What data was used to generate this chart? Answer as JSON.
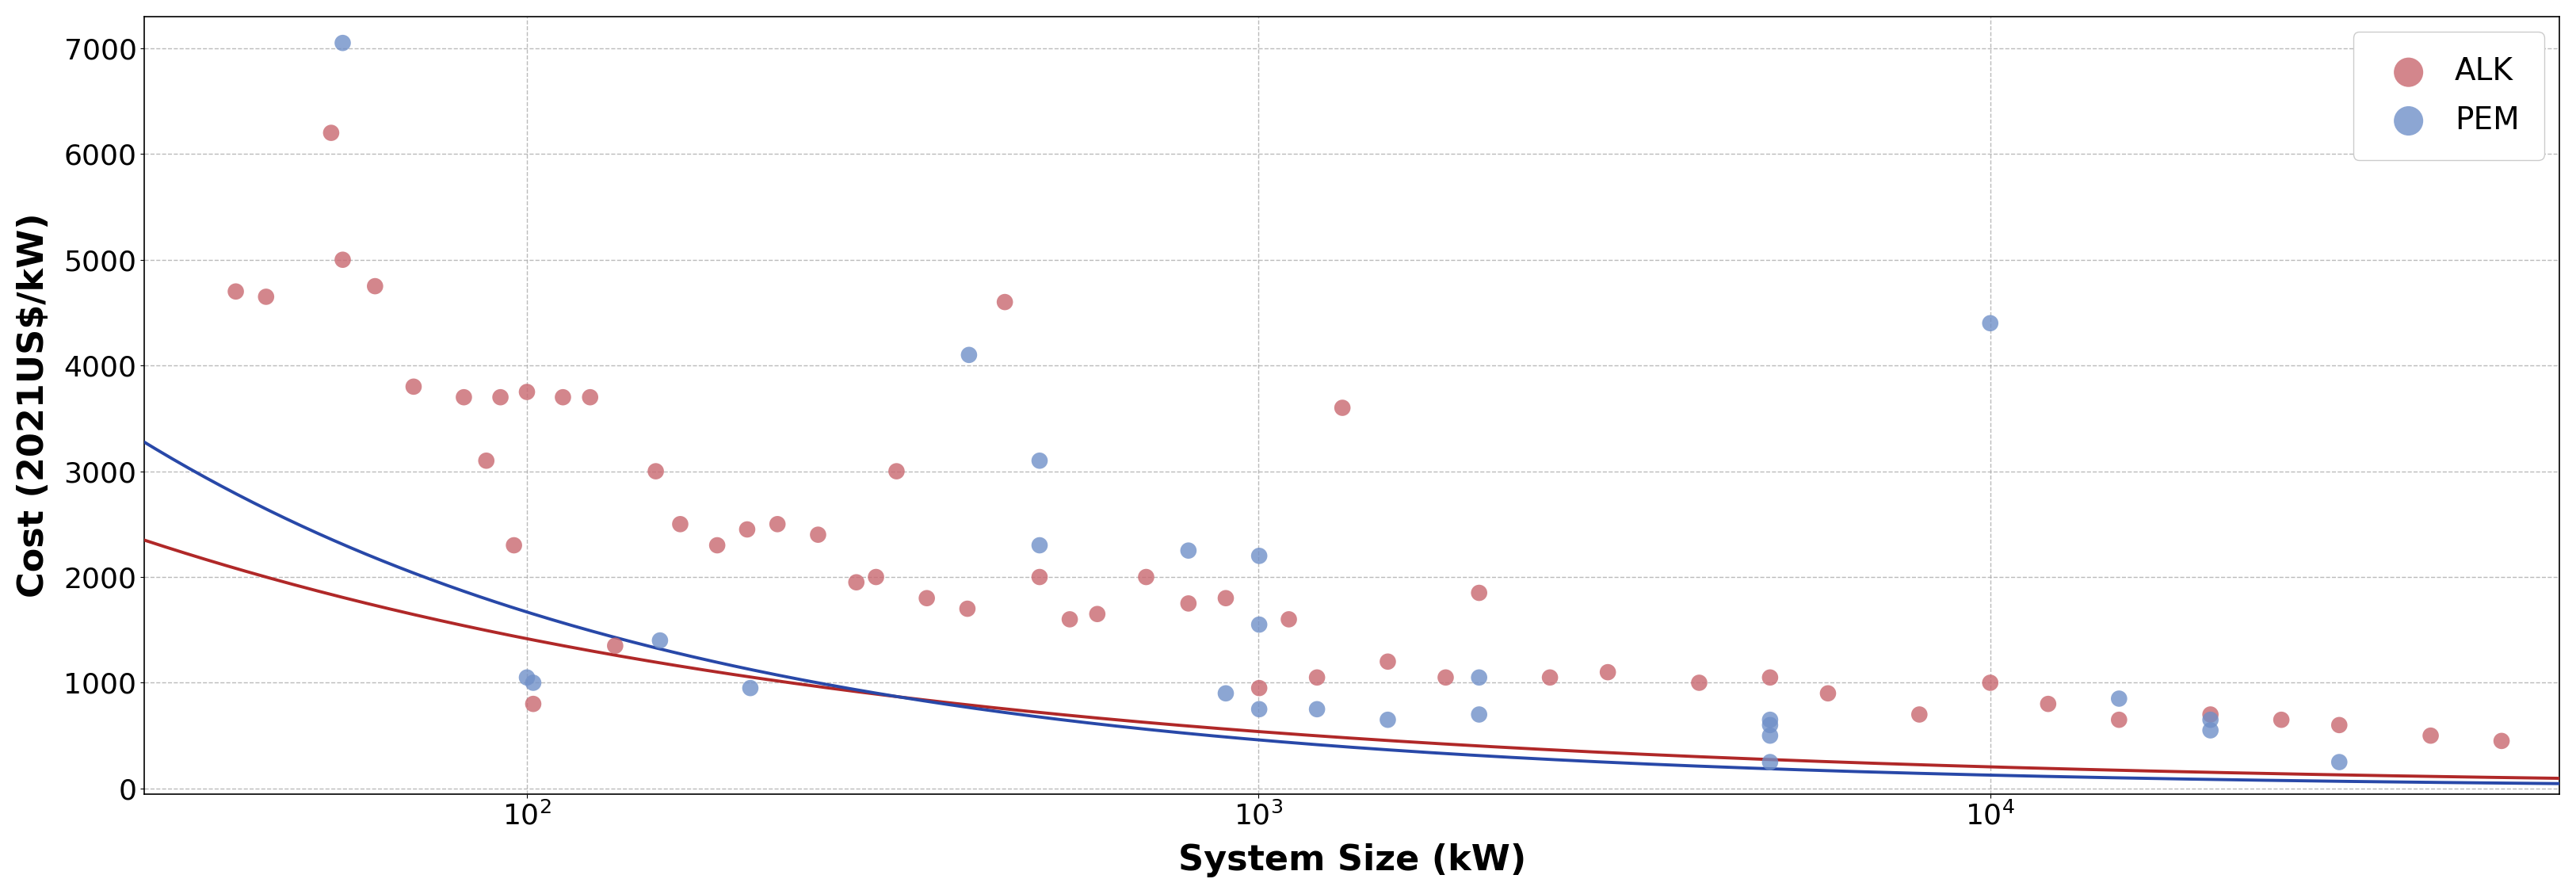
{
  "title": "",
  "xlabel": "System Size (kW)",
  "ylabel": "Cost (2021US$/kW)",
  "xlim_log": [
    30,
    60000
  ],
  "ylim": [
    -50,
    7300
  ],
  "yticks": [
    0,
    1000,
    2000,
    3000,
    4000,
    5000,
    6000,
    7000
  ],
  "background_color": "#ffffff",
  "alk_color": "#c96870",
  "pem_color": "#7090c8",
  "curve_alk_color": "#b02828",
  "curve_pem_color": "#2848a8",
  "ALK_x": [
    40,
    44,
    54,
    56,
    62,
    70,
    82,
    88,
    92,
    96,
    100,
    102,
    112,
    122,
    132,
    150,
    162,
    182,
    200,
    220,
    250,
    282,
    300,
    320,
    352,
    400,
    450,
    502,
    552,
    602,
    702,
    802,
    902,
    1002,
    1100,
    1202,
    1302,
    1502,
    1802,
    2002,
    2502,
    3002,
    4002,
    5002,
    6002,
    8002,
    10002,
    12002,
    15002,
    20002,
    25002,
    30002,
    40002,
    50002
  ],
  "ALK_y": [
    4700,
    4650,
    6200,
    5000,
    4750,
    3800,
    3700,
    3100,
    3700,
    2300,
    3750,
    800,
    3700,
    3700,
    1350,
    3000,
    2500,
    2300,
    2450,
    2500,
    2400,
    1950,
    2000,
    3000,
    1800,
    1700,
    4600,
    2000,
    1600,
    1650,
    2000,
    1750,
    1800,
    950,
    1600,
    1050,
    3600,
    1200,
    1050,
    1850,
    1050,
    1100,
    1000,
    1050,
    900,
    700,
    1000,
    800,
    650,
    700,
    650,
    600,
    500,
    450
  ],
  "PEM_x": [
    56,
    100,
    102,
    152,
    202,
    402,
    502,
    502,
    802,
    902,
    1002,
    1002,
    1002,
    1202,
    1502,
    2002,
    2002,
    5002,
    5002,
    5002,
    5002,
    10002,
    15002,
    20002,
    20002,
    30002
  ],
  "PEM_y": [
    7050,
    1050,
    1000,
    1400,
    950,
    4100,
    3100,
    2300,
    2250,
    900,
    2200,
    1550,
    750,
    750,
    650,
    1050,
    700,
    650,
    600,
    500,
    250,
    4400,
    850,
    650,
    550,
    250
  ],
  "alk_fit_a": 9800,
  "alk_fit_b": -0.42,
  "pem_fit_a": 22000,
  "pem_fit_b": -0.56,
  "marker_size": 220,
  "marker_alpha": 0.8,
  "curve_lw": 2.8,
  "legend_fontsize": 28,
  "axis_label_fontsize": 32,
  "tick_fontsize": 26,
  "legend_marker_scale": 1.8
}
